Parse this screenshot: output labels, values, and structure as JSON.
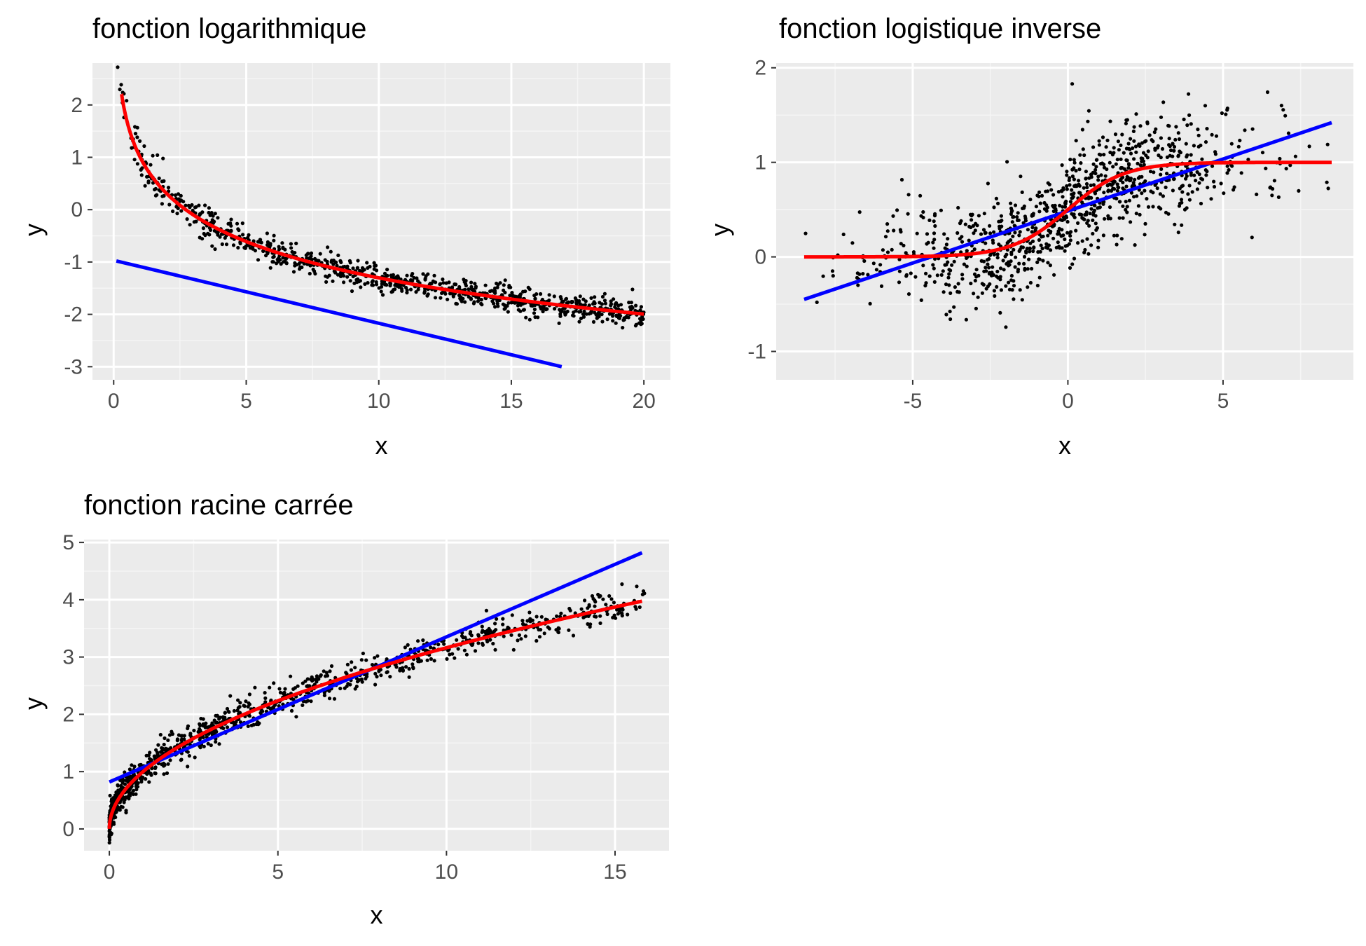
{
  "colors": {
    "panel_bg": "#ebebeb",
    "grid_major": "#ffffff",
    "grid_minor": "#f5f5f5",
    "points": "#000000",
    "linear_fit": "#0000ff",
    "curve_fit": "#ff0000",
    "tick_text": "#4d4d4d"
  },
  "chart_data": [
    {
      "type": "scatter",
      "title": "fonction logarithmique",
      "xlabel": "x",
      "ylabel": "y",
      "xlim": [
        -0.8,
        21
      ],
      "ylim": [
        -3.25,
        2.8
      ],
      "xticks": [
        0,
        5,
        10,
        15,
        20
      ],
      "xtick_labels": [
        "0",
        "5",
        "10",
        "15",
        "20"
      ],
      "yticks": [
        -3,
        -2,
        -1,
        0,
        1,
        2
      ],
      "ytick_labels": [
        "-3",
        "-2",
        "-1",
        "0",
        "1",
        "2"
      ],
      "grid": true,
      "points": {
        "model": "log",
        "x_range": [
          0.1,
          20
        ],
        "n": 900,
        "noise_sd": 0.12,
        "seed": 7
      },
      "series": [
        {
          "type": "line",
          "color": "#0000ff",
          "x": [
            0.1,
            16.9
          ],
          "y": [
            -0.98,
            -3.0
          ]
        },
        {
          "type": "line",
          "color": "#ff0000",
          "function": "1 - ln(x)",
          "x_range": [
            0.3,
            20
          ]
        }
      ]
    },
    {
      "type": "scatter",
      "title": "fonction logistique inverse",
      "xlabel": "x",
      "ylabel": "y",
      "xlim": [
        -9.4,
        9.2
      ],
      "ylim": [
        -1.3,
        2.05
      ],
      "xticks": [
        -5,
        0,
        5
      ],
      "xtick_labels": [
        "-5",
        "0",
        "5"
      ],
      "yticks": [
        -1,
        0,
        1,
        2
      ],
      "ytick_labels": [
        "-1",
        "0",
        "1",
        "2"
      ],
      "grid": true,
      "points": {
        "model": "logistic",
        "x_range": [
          -8.8,
          8.5
        ],
        "n": 1000,
        "noise_sd": 0.28,
        "seed": 11
      },
      "series": [
        {
          "type": "line",
          "color": "#0000ff",
          "x": [
            -8.5,
            8.5
          ],
          "y": [
            -0.45,
            1.42
          ]
        },
        {
          "type": "line",
          "color": "#ff0000",
          "function": "1 / (1 + exp(-1.1 * x))",
          "x_range": [
            -8.5,
            8.5
          ]
        }
      ]
    },
    {
      "type": "scatter",
      "title": "fonction racine carrée",
      "xlabel": "x",
      "ylabel": "y",
      "xlim": [
        -0.75,
        16.6
      ],
      "ylim": [
        -0.38,
        5.05
      ],
      "xticks": [
        0,
        5,
        10,
        15
      ],
      "xtick_labels": [
        "0",
        "5",
        "10",
        "15"
      ],
      "yticks": [
        0,
        1,
        2,
        3,
        4,
        5
      ],
      "ytick_labels": [
        "0",
        "1",
        "2",
        "3",
        "4",
        "5"
      ],
      "grid": true,
      "points": {
        "model": "sqrt",
        "x_range": [
          0,
          15.9
        ],
        "n": 1000,
        "noise_sd": 0.14,
        "seed": 3
      },
      "series": [
        {
          "type": "line",
          "color": "#0000ff",
          "x": [
            0,
            15.8
          ],
          "y": [
            0.82,
            4.82
          ]
        },
        {
          "type": "line",
          "color": "#ff0000",
          "function": "sqrt(x)",
          "x_range": [
            0,
            15.8
          ]
        }
      ]
    }
  ]
}
